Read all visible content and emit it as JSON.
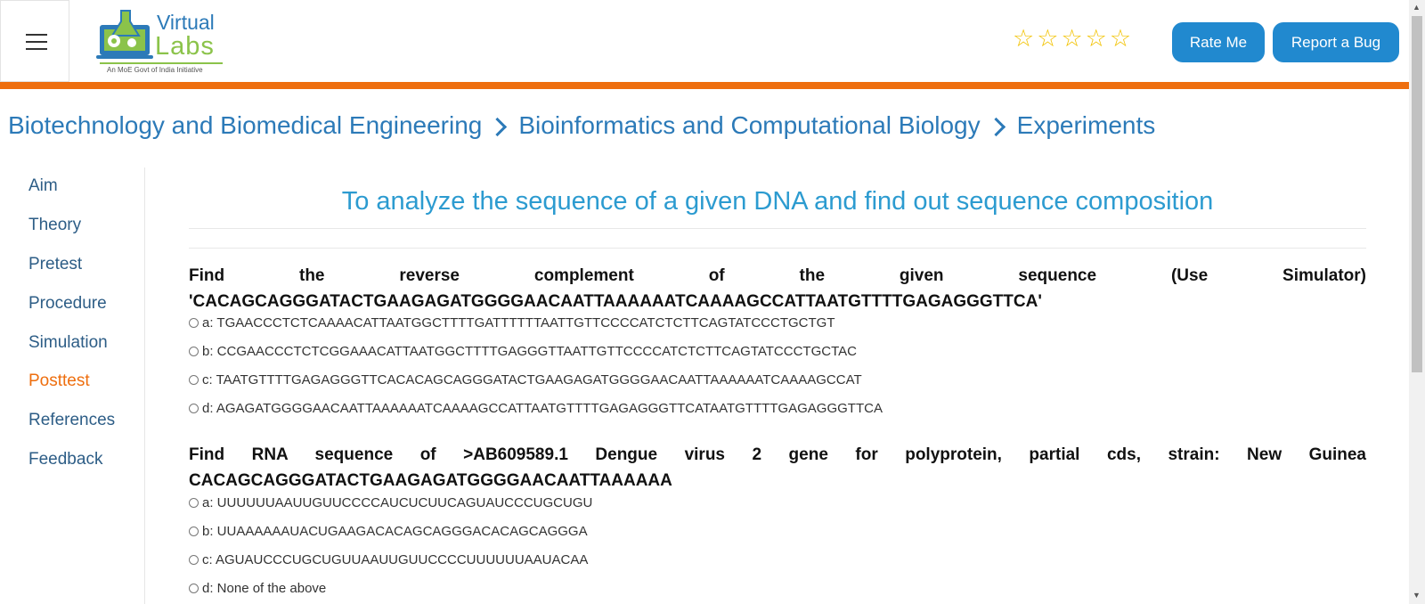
{
  "header": {
    "logo": {
      "line1": "Virtual",
      "line2": "Labs",
      "tagline": "An MoE Govt of India Initiative"
    },
    "rating_stars": 5,
    "rate_button": "Rate Me",
    "bug_button": "Report a Bug"
  },
  "breadcrumb": [
    "Biotechnology and Biomedical Engineering",
    "Bioinformatics and Computational Biology",
    "Experiments"
  ],
  "sidebar": {
    "items": [
      {
        "label": "Aim"
      },
      {
        "label": "Theory"
      },
      {
        "label": "Pretest"
      },
      {
        "label": "Procedure"
      },
      {
        "label": "Simulation"
      },
      {
        "label": "Posttest",
        "active": true
      },
      {
        "label": "References"
      },
      {
        "label": "Feedback"
      }
    ]
  },
  "main": {
    "title": "To analyze the sequence of a given DNA and find out sequence composition",
    "questions": [
      {
        "line1": "Find the reverse complement of the given sequence (Use Simulator)",
        "line2": "'CACAGCAGGGATACTGAAGAGATGGGGAACAATTAAAAAATCAAAAGCCATTAATGTTTTGAGAGGGTTCA'",
        "options": [
          "a: TGAACCCTCTCAAAACATTAATGGCTTTTGATTTTTTAATTGTTCCCCATCTCTTCAGTATCCCTGCTGT",
          "b: CCGAACCCTCTCGGAAACATTAATGGCTTTTGAGGGTTAATTGTTCCCCATCTCTTCAGTATCCCTGCTAC",
          "c: TAATGTTTTGAGAGGGTTCACACAGCAGGGATACTGAAGAGATGGGGAACAATTAAAAAATCAAAAGCCAT",
          "d: AGAGATGGGGAACAATTAAAAAATCAAAAGCCATTAATGTTTTGAGAGGGTTCATAATGTTTTGAGAGGGTTCA"
        ]
      },
      {
        "line1": "Find RNA sequence of >AB609589.1 Dengue virus 2 gene for polyprotein, partial cds, strain: New Guinea",
        "line2": "CACAGCAGGGATACTGAAGAGATGGGGAACAATTAAAAAA",
        "options": [
          "a: UUUUUUAAUUGUUCCCCAUCUCUUCAGUAUCCCUGCUGU",
          "b: UUAAAAAAUACUGAAGACACAGCAGGGACACAGCAGGGA",
          "c: AGUAUCCCUGCUGUUAAUUGUUCCCCUUUUUUAAUACAA",
          "d: None of the above"
        ]
      }
    ]
  }
}
